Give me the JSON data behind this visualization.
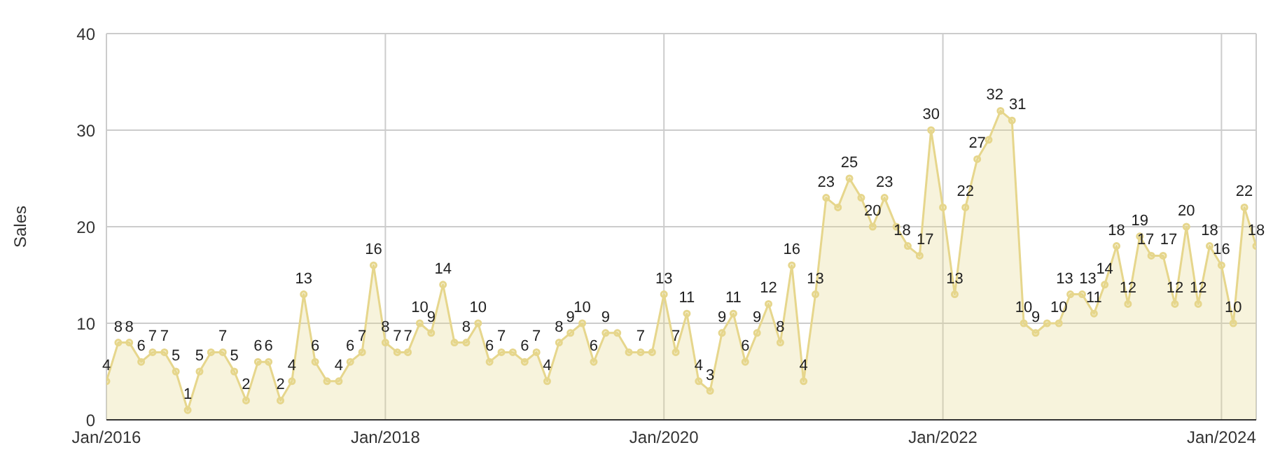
{
  "chart_data": {
    "type": "area",
    "ylabel": "Sales",
    "x": [
      "2016-01",
      "2016-02",
      "2016-03",
      "2016-04",
      "2016-05",
      "2016-06",
      "2016-07",
      "2016-08",
      "2016-09",
      "2016-10",
      "2016-11",
      "2016-12",
      "2017-01",
      "2017-02",
      "2017-03",
      "2017-04",
      "2017-05",
      "2017-06",
      "2017-07",
      "2017-08",
      "2017-09",
      "2017-10",
      "2017-11",
      "2017-12",
      "2018-01",
      "2018-02",
      "2018-03",
      "2018-04",
      "2018-05",
      "2018-06",
      "2018-07",
      "2018-08",
      "2018-09",
      "2018-10",
      "2018-11",
      "2018-12",
      "2019-01",
      "2019-02",
      "2019-03",
      "2019-04",
      "2019-05",
      "2019-06",
      "2019-07",
      "2019-08",
      "2019-09",
      "2019-10",
      "2019-11",
      "2019-12",
      "2020-01",
      "2020-02",
      "2020-03",
      "2020-04",
      "2020-05",
      "2020-06",
      "2020-07",
      "2020-08",
      "2020-09",
      "2020-10",
      "2020-11",
      "2020-12",
      "2021-01",
      "2021-02",
      "2021-03",
      "2021-04",
      "2021-05",
      "2021-06",
      "2021-07",
      "2021-08",
      "2021-09",
      "2021-10",
      "2021-11",
      "2021-12",
      "2022-01",
      "2022-02",
      "2022-03",
      "2022-04",
      "2022-05",
      "2022-06",
      "2022-07",
      "2022-08",
      "2022-09",
      "2022-10",
      "2022-11",
      "2022-12",
      "2023-01",
      "2023-02",
      "2023-03",
      "2023-04",
      "2023-05",
      "2023-06",
      "2023-07",
      "2023-08",
      "2023-09",
      "2023-10",
      "2023-11",
      "2023-12",
      "2024-01",
      "2024-02",
      "2024-03",
      "2024-04"
    ],
    "series": [
      {
        "color": "#e6d68c",
        "values": [
          4,
          8,
          8,
          6,
          7,
          7,
          5,
          1,
          5,
          7,
          7,
          5,
          2,
          6,
          6,
          2,
          4,
          13,
          6,
          4,
          4,
          6,
          7,
          16,
          8,
          7,
          7,
          10,
          9,
          14,
          8,
          8,
          10,
          6,
          7,
          7,
          6,
          7,
          4,
          8,
          9,
          10,
          6,
          9,
          9,
          7,
          7,
          7,
          13,
          7,
          11,
          4,
          3,
          9,
          11,
          6,
          9,
          12,
          8,
          16,
          4,
          13,
          23,
          22,
          25,
          23,
          20,
          23,
          20,
          18,
          17,
          30,
          22,
          13,
          22,
          27,
          29,
          32,
          31,
          10,
          9,
          10,
          10,
          13,
          13,
          11,
          14,
          18,
          12,
          19,
          17,
          17,
          12,
          20,
          12,
          18,
          16,
          10,
          22,
          18
        ],
        "value_labels": [
          "4",
          "8",
          "8",
          "6",
          "7",
          "7",
          "5",
          "1",
          "5",
          null,
          "7",
          "5",
          "2",
          "6",
          "6",
          "2",
          "4",
          "13",
          "6",
          null,
          "4",
          "6",
          "7",
          "16",
          "8",
          "7",
          "7",
          "10",
          "9",
          "14",
          null,
          "8",
          "10",
          "6",
          "7",
          null,
          "6",
          "7",
          "4",
          "8",
          "9",
          "10",
          "6",
          "9",
          null,
          null,
          "7",
          null,
          "13",
          "7",
          "11",
          "4",
          "3",
          "9",
          "11",
          "6",
          "9",
          "12",
          "8",
          "16",
          "4",
          "13",
          "23",
          null,
          "25",
          null,
          "20",
          "23",
          null,
          "18",
          "17",
          "30",
          null,
          "13",
          "22",
          "27",
          null,
          "32",
          "31",
          "10",
          "9",
          null,
          "10",
          "13",
          "13",
          "11",
          "14",
          "18",
          "12",
          "19",
          "17",
          "17",
          "12",
          "20",
          "12",
          "18",
          "16",
          "10",
          "22",
          "18"
        ]
      }
    ],
    "xlim": [
      "2016-01",
      "2024-04"
    ],
    "xticks": [
      {
        "value": "2016-01",
        "label": "Jan/2016"
      },
      {
        "value": "2018-01",
        "label": "Jan/2018"
      },
      {
        "value": "2020-01",
        "label": "Jan/2020"
      },
      {
        "value": "2022-01",
        "label": "Jan/2022"
      },
      {
        "value": "2024-01",
        "label": "Jan/2024"
      }
    ],
    "ylim": [
      0,
      40
    ],
    "yticks": [
      0,
      10,
      20,
      30,
      40
    ],
    "grid": true,
    "marker": "circle"
  }
}
